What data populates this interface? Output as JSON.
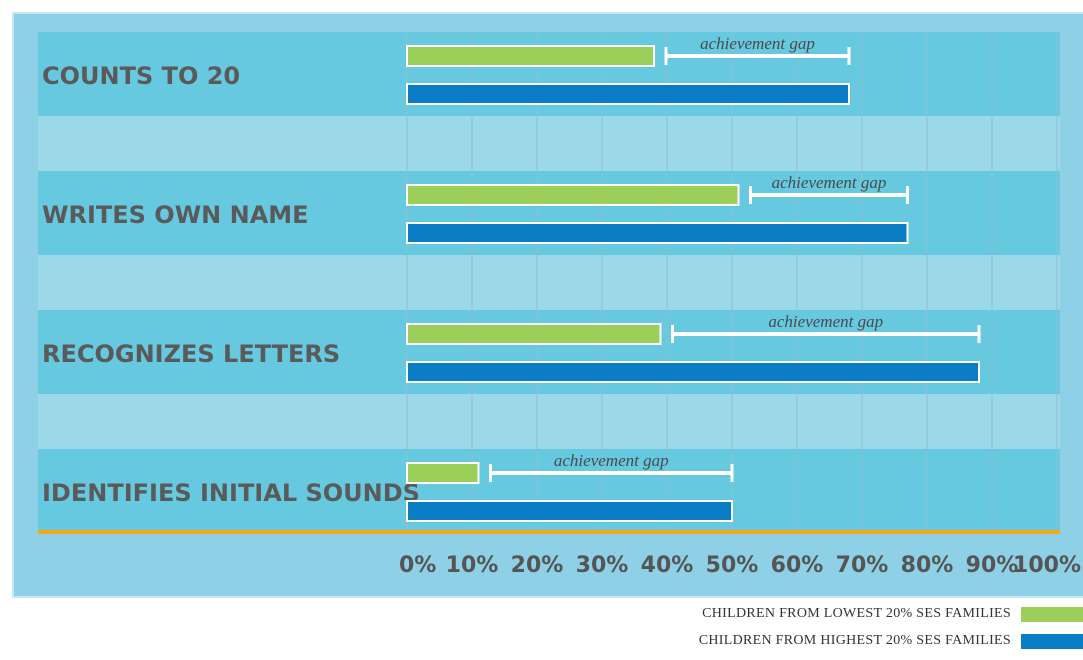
{
  "chart_data": {
    "type": "bar",
    "orientation": "horizontal",
    "categories": [
      "COUNTS TO 20",
      "WRITES OWN NAME",
      "RECOGNIZES LETTERS",
      "IDENTIFIES INITIAL SOUNDS"
    ],
    "series": [
      {
        "name": "CHILDREN FROM LOWEST 20% SES FAMILIES",
        "values": [
          38,
          51,
          39,
          11
        ],
        "color": "#9ccf5a"
      },
      {
        "name": "CHILDREN FROM HIGHEST 20% SES FAMILIES",
        "values": [
          68,
          77,
          88,
          50
        ],
        "color": "#0a7cc4"
      }
    ],
    "annotation": "achievement gap",
    "xlim": [
      0,
      100
    ],
    "x_ticks": [
      "0%",
      "10%",
      "20%",
      "30%",
      "40%",
      "50%",
      "60%",
      "70%",
      "80%",
      "90%",
      "100%"
    ],
    "grid": true,
    "legend_position": "bottom-right",
    "accent_line_color": "#f5a81c"
  }
}
